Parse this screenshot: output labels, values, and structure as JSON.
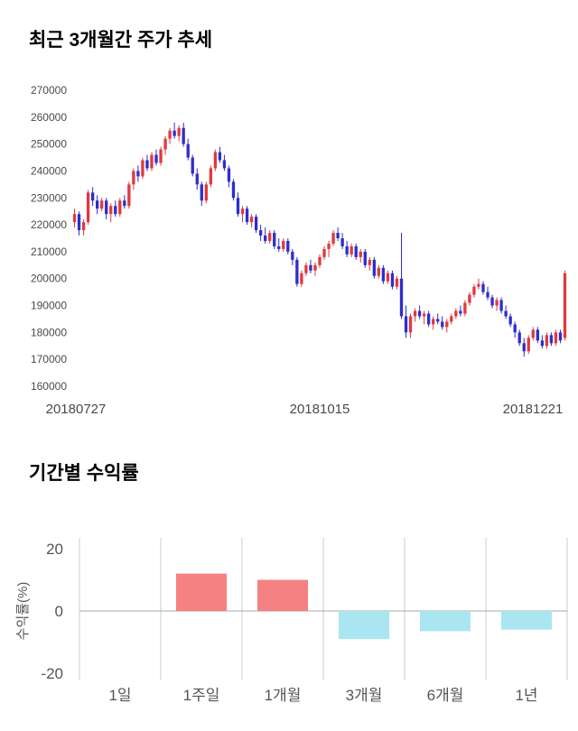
{
  "chart_data": [
    {
      "type": "candlestick",
      "title": "최근 3개월간 주가 추세",
      "ylim": [
        160000,
        270000
      ],
      "yticks": [
        270000,
        260000,
        250000,
        240000,
        230000,
        220000,
        210000,
        200000,
        190000,
        180000,
        170000,
        160000
      ],
      "x_labels": [
        "20180727",
        "20181015",
        "20181221"
      ],
      "up_color": "#df3a3e",
      "down_color": "#2e2ecb",
      "axis_text_color": "#4a4a4a",
      "grid": "off",
      "legend": "none",
      "candles": [
        [
          221000,
          226000,
          219000,
          224000
        ],
        [
          224000,
          225000,
          216000,
          218000
        ],
        [
          218000,
          222000,
          216000,
          221000
        ],
        [
          221000,
          233000,
          220000,
          232000
        ],
        [
          232000,
          234000,
          227000,
          229000
        ],
        [
          229000,
          231000,
          224000,
          226000
        ],
        [
          226000,
          230000,
          225000,
          229000
        ],
        [
          229000,
          230000,
          222000,
          224000
        ],
        [
          224000,
          228000,
          221000,
          227000
        ],
        [
          227000,
          229000,
          223000,
          224000
        ],
        [
          224000,
          230000,
          223000,
          229000
        ],
        [
          229000,
          231000,
          226000,
          227000
        ],
        [
          227000,
          236000,
          226000,
          235000
        ],
        [
          235000,
          241000,
          233000,
          240000
        ],
        [
          240000,
          242000,
          236000,
          238000
        ],
        [
          238000,
          245000,
          237000,
          244000
        ],
        [
          244000,
          246000,
          240000,
          241000
        ],
        [
          241000,
          247000,
          240000,
          246000
        ],
        [
          246000,
          248000,
          242000,
          243000
        ],
        [
          243000,
          249000,
          242000,
          248000
        ],
        [
          248000,
          253000,
          246000,
          252000
        ],
        [
          252000,
          256000,
          250000,
          255000
        ],
        [
          255000,
          258000,
          252000,
          253000
        ],
        [
          253000,
          257000,
          251000,
          256000
        ],
        [
          256000,
          258000,
          249000,
          250000
        ],
        [
          250000,
          252000,
          244000,
          245000
        ],
        [
          245000,
          246000,
          238000,
          239000
        ],
        [
          239000,
          241000,
          233000,
          235000
        ],
        [
          235000,
          236000,
          227000,
          229000
        ],
        [
          229000,
          236000,
          228000,
          235000
        ],
        [
          235000,
          242000,
          234000,
          241000
        ],
        [
          241000,
          248000,
          240000,
          247000
        ],
        [
          247000,
          249000,
          243000,
          244000
        ],
        [
          244000,
          246000,
          240000,
          241000
        ],
        [
          241000,
          242000,
          234000,
          236000
        ],
        [
          236000,
          237000,
          229000,
          230000
        ],
        [
          230000,
          232000,
          223000,
          224000
        ],
        [
          224000,
          227000,
          221000,
          226000
        ],
        [
          226000,
          227000,
          220000,
          221000
        ],
        [
          221000,
          224000,
          219000,
          223000
        ],
        [
          223000,
          224000,
          217000,
          218000
        ],
        [
          218000,
          220000,
          214000,
          216000
        ],
        [
          216000,
          219000,
          213000,
          214000
        ],
        [
          214000,
          218000,
          213000,
          217000
        ],
        [
          217000,
          218000,
          211000,
          212000
        ],
        [
          212000,
          215000,
          210000,
          211000
        ],
        [
          211000,
          215000,
          210000,
          214000
        ],
        [
          214000,
          215000,
          209000,
          210000
        ],
        [
          210000,
          211000,
          205000,
          207000
        ],
        [
          207000,
          208000,
          197000,
          198000
        ],
        [
          198000,
          203000,
          197000,
          202000
        ],
        [
          202000,
          206000,
          201000,
          205000
        ],
        [
          205000,
          207000,
          202000,
          203000
        ],
        [
          203000,
          206000,
          201000,
          205000
        ],
        [
          205000,
          209000,
          204000,
          208000
        ],
        [
          208000,
          212000,
          207000,
          211000
        ],
        [
          211000,
          214000,
          208000,
          213000
        ],
        [
          213000,
          218000,
          212000,
          217000
        ],
        [
          217000,
          219000,
          214000,
          215000
        ],
        [
          215000,
          217000,
          211000,
          212000
        ],
        [
          212000,
          214000,
          208000,
          209000
        ],
        [
          209000,
          213000,
          208000,
          212000
        ],
        [
          212000,
          213000,
          207000,
          208000
        ],
        [
          208000,
          211000,
          206000,
          210000
        ],
        [
          210000,
          211000,
          204000,
          205000
        ],
        [
          205000,
          208000,
          203000,
          207000
        ],
        [
          207000,
          208000,
          200000,
          201000
        ],
        [
          201000,
          205000,
          200000,
          204000
        ],
        [
          204000,
          205000,
          198000,
          199000
        ],
        [
          199000,
          203000,
          198000,
          202000
        ],
        [
          202000,
          203000,
          196000,
          197000
        ],
        [
          197000,
          201000,
          196000,
          200000
        ],
        [
          200000,
          217000,
          185000,
          186000
        ],
        [
          186000,
          190000,
          178000,
          180000
        ],
        [
          180000,
          187000,
          178000,
          186000
        ],
        [
          186000,
          189000,
          184000,
          188000
        ],
        [
          188000,
          190000,
          185000,
          186000
        ],
        [
          186000,
          188000,
          183000,
          187000
        ],
        [
          187000,
          188000,
          182000,
          183000
        ],
        [
          183000,
          186000,
          181000,
          185000
        ],
        [
          185000,
          187000,
          183000,
          184000
        ],
        [
          184000,
          186000,
          181000,
          182000
        ],
        [
          182000,
          185000,
          180000,
          184000
        ],
        [
          184000,
          187000,
          183000,
          186000
        ],
        [
          186000,
          189000,
          185000,
          188000
        ],
        [
          188000,
          190000,
          186000,
          187000
        ],
        [
          187000,
          192000,
          186000,
          191000
        ],
        [
          191000,
          195000,
          190000,
          194000
        ],
        [
          194000,
          198000,
          193000,
          197000
        ],
        [
          197000,
          200000,
          196000,
          198000
        ],
        [
          198000,
          199000,
          194000,
          195000
        ],
        [
          195000,
          197000,
          192000,
          193000
        ],
        [
          193000,
          194000,
          189000,
          190000
        ],
        [
          190000,
          193000,
          188000,
          192000
        ],
        [
          192000,
          193000,
          187000,
          188000
        ],
        [
          188000,
          190000,
          185000,
          186000
        ],
        [
          186000,
          187000,
          182000,
          183000
        ],
        [
          183000,
          184000,
          178000,
          180000
        ],
        [
          180000,
          181000,
          175000,
          176000
        ],
        [
          176000,
          178000,
          171000,
          173000
        ],
        [
          173000,
          179000,
          172000,
          178000
        ],
        [
          178000,
          182000,
          177000,
          181000
        ],
        [
          181000,
          182000,
          176000,
          177000
        ],
        [
          177000,
          179000,
          174000,
          175000
        ],
        [
          175000,
          180000,
          174000,
          179000
        ],
        [
          179000,
          180000,
          175000,
          176000
        ],
        [
          176000,
          181000,
          175000,
          180000
        ],
        [
          180000,
          181000,
          176000,
          177000
        ],
        [
          178000,
          203000,
          177000,
          202000
        ]
      ]
    },
    {
      "type": "bar",
      "title": "기간별 수익률",
      "ylabel": "수익률(%)",
      "yticks": [
        20,
        0,
        -20
      ],
      "ylim": [
        -23,
        23
      ],
      "categories": [
        "1일",
        "1주일",
        "1개월",
        "3개월",
        "6개월",
        "1년"
      ],
      "values": [
        0,
        12,
        10,
        -9,
        -6.5,
        -6
      ],
      "pos_color": "#f58182",
      "neg_color": "#a9e6f2",
      "grid_color": "#cccccc",
      "zero_line_color": "#aaaaaa",
      "axis_text_color": "#555555",
      "grid": "vertical",
      "legend": "none"
    }
  ]
}
